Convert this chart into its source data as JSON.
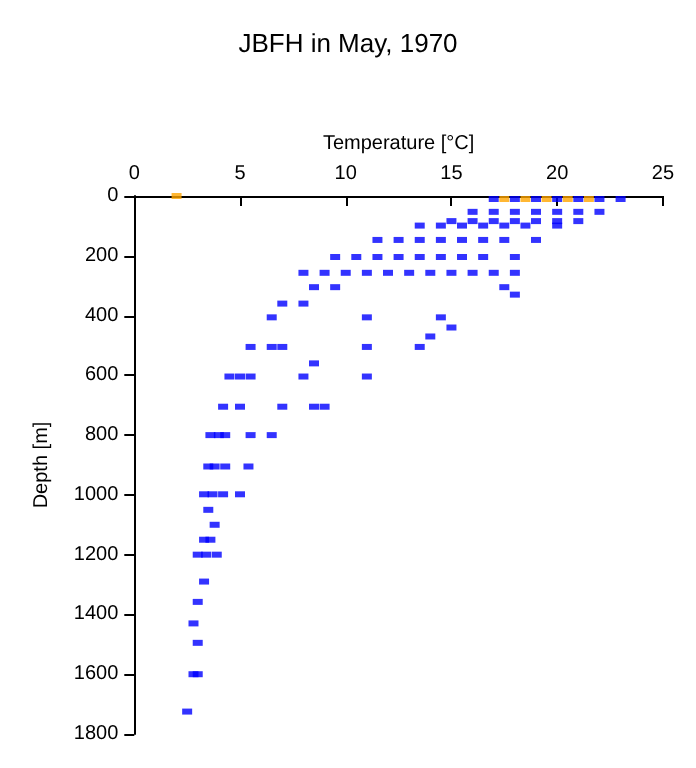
{
  "chart_data": {
    "type": "scatter",
    "title": "JBFH in May, 1970",
    "xlabel": "Temperature [°C]",
    "ylabel": "Depth [m]",
    "xlim": [
      0,
      25
    ],
    "xticks": [
      0,
      5,
      10,
      15,
      20,
      25
    ],
    "ylim": [
      1800,
      0
    ],
    "yticks": [
      0,
      200,
      400,
      600,
      800,
      1000,
      1200,
      1400,
      1600,
      1800
    ],
    "grid": false,
    "marker": "square",
    "series": [
      {
        "color": "#0000ff",
        "x": [
          17,
          18,
          19,
          20,
          21,
          22,
          23,
          16,
          17,
          18,
          19,
          20,
          21,
          22,
          15,
          16,
          17,
          18,
          19,
          20,
          21,
          13.5,
          14.5,
          15.5,
          16.5,
          17.5,
          18.5,
          20,
          11.5,
          12.5,
          13.5,
          14.5,
          15.5,
          16.5,
          17.5,
          19,
          9.5,
          10.5,
          11.5,
          12.5,
          13.5,
          14.5,
          15.5,
          16.5,
          18,
          8,
          9,
          10,
          11,
          12,
          13,
          14,
          15,
          16,
          17,
          18,
          8.5,
          9.5,
          17.5,
          18,
          6.5,
          11,
          14.5,
          15,
          7,
          8,
          5.5,
          6.5,
          7,
          11,
          13.5,
          14,
          4.5,
          5,
          5.5,
          8,
          8.5,
          11,
          4.2,
          5,
          7,
          8.5,
          9,
          3.6,
          4,
          4.3,
          5.5,
          6.5,
          3.5,
          3.8,
          4.3,
          5.4,
          3.3,
          3.7,
          4.2,
          5,
          3.5,
          3.8,
          3.3,
          3.6,
          3.0,
          3.4,
          3.9,
          3.3,
          3.0,
          2.8,
          3.0,
          2.8,
          3.0,
          2.5
        ],
        "values": [
          10,
          10,
          10,
          10,
          10,
          10,
          10,
          53,
          53,
          53,
          53,
          53,
          53,
          53,
          84,
          84,
          84,
          84,
          84,
          84,
          84,
          99,
          99,
          99,
          99,
          99,
          99,
          99,
          147,
          147,
          147,
          147,
          147,
          147,
          147,
          147,
          204,
          204,
          204,
          204,
          204,
          204,
          204,
          204,
          204,
          257,
          257,
          257,
          257,
          257,
          257,
          257,
          257,
          257,
          257,
          257,
          305,
          305,
          305,
          330,
          406,
          406,
          406,
          440,
          360,
          360,
          505,
          505,
          505,
          505,
          505,
          470,
          604,
          604,
          604,
          604,
          560,
          604,
          705,
          705,
          705,
          705,
          705,
          800,
          800,
          800,
          800,
          800,
          905,
          905,
          905,
          905,
          998,
          998,
          998,
          998,
          1050,
          1100,
          1150,
          1150,
          1200,
          1200,
          1200,
          1290,
          1358,
          1430,
          1495,
          1600,
          1600,
          1725
        ]
      },
      {
        "color": "#ffa500",
        "x": [
          2,
          17.5,
          18.5,
          19.5,
          20.5,
          21.5
        ],
        "values": [
          0,
          10,
          10,
          10,
          10,
          10
        ]
      }
    ]
  }
}
